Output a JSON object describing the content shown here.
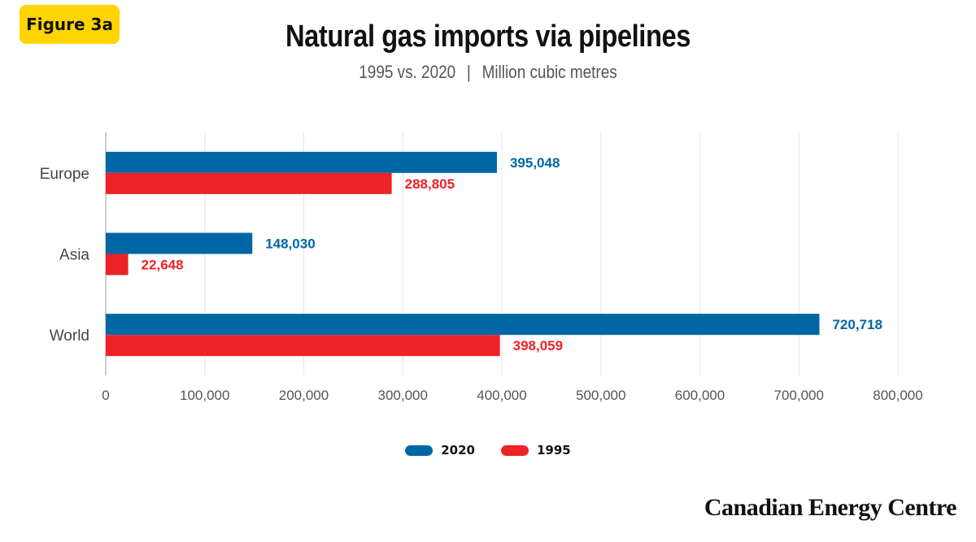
{
  "badge": {
    "label": "Figure 3a"
  },
  "header": {
    "title": "Natural gas imports via pipelines",
    "subtitle_years": "1995 vs. 2020",
    "subtitle_sep": "|",
    "subtitle_unit": "Million cubic metres"
  },
  "brand": {
    "name": "Canadian Energy Centre"
  },
  "colors": {
    "s2020": "#0067a5",
    "s1995": "#ee2227",
    "grid": "#e6e6e6",
    "tick": "#555555"
  },
  "chart_data": {
    "type": "bar",
    "orientation": "horizontal",
    "categories": [
      "Europe",
      "Asia",
      "World"
    ],
    "series": [
      {
        "name": "2020",
        "values": [
          395048,
          148030,
          720718
        ],
        "labels": [
          "395,048",
          "148,030",
          "720,718"
        ]
      },
      {
        "name": "1995",
        "values": [
          288805,
          22648,
          398059
        ],
        "labels": [
          "288,805",
          "22,648",
          "398,059"
        ]
      }
    ],
    "xlim": [
      0,
      800000
    ],
    "xticks": [
      0,
      100000,
      200000,
      300000,
      400000,
      500000,
      600000,
      700000,
      800000
    ],
    "xtick_labels": [
      "0",
      "100,000",
      "200,000",
      "300,000",
      "400,000",
      "500,000",
      "600,000",
      "700,000",
      "800,000"
    ],
    "grid": true,
    "legend_position": "bottom-center"
  }
}
